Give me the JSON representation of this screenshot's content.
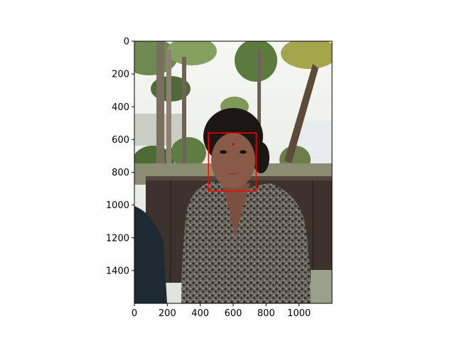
{
  "chart_data": {
    "type": "image",
    "image_content": "photo of a woman seated on a wooden bench outdoors, trees and greenery behind",
    "xlim": [
      0,
      1200
    ],
    "ylim": [
      1600,
      0
    ],
    "x_ticks": [
      0,
      200,
      400,
      600,
      800,
      1000
    ],
    "y_ticks": [
      0,
      200,
      400,
      600,
      800,
      1000,
      1200,
      1400
    ],
    "annotations": [
      {
        "type": "rectangle",
        "label": "face",
        "x0": 450,
        "y0": 560,
        "x1": 740,
        "y1": 915,
        "color": "#ff0000"
      }
    ],
    "colors": {
      "sky": "#eef1ec",
      "foliage": "#5f7a45",
      "bench": "#3d332c",
      "dress": "#55524c",
      "skin": "#8a5a48",
      "box": "#ff0000"
    }
  }
}
